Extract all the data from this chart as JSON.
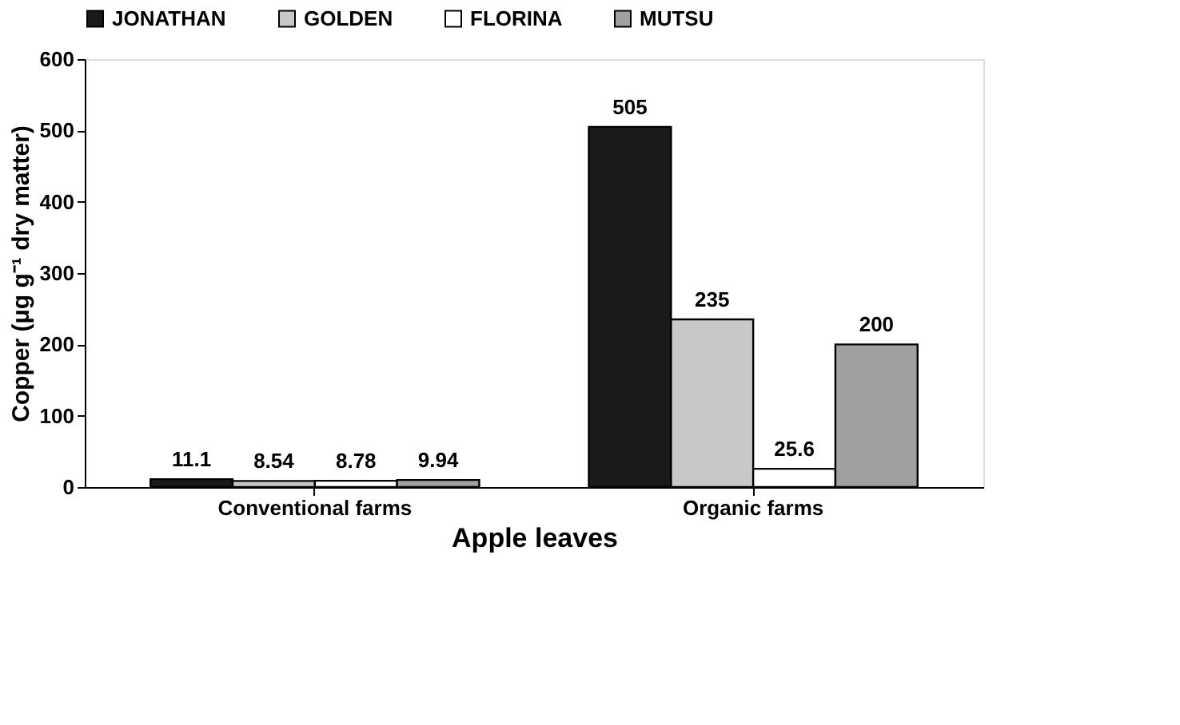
{
  "chart_data": {
    "type": "bar",
    "xlabel": "Apple leaves",
    "ylabel": "Copper (μg g⁻¹ dry matter)",
    "categories": [
      "Conventional farms",
      "Organic farms"
    ],
    "series": [
      {
        "name": "JONATHAN",
        "color": "#1a1a1a",
        "values": [
          11.1,
          505
        ]
      },
      {
        "name": "GOLDEN",
        "color": "#c8c8c8",
        "values": [
          8.54,
          235
        ]
      },
      {
        "name": "FLORINA",
        "color": "#ffffff",
        "values": [
          8.78,
          25.6
        ]
      },
      {
        "name": "MUTSU",
        "color": "#a0a0a0",
        "values": [
          9.94,
          200
        ]
      }
    ],
    "ylim": [
      0,
      600
    ],
    "yticks": [
      0,
      100,
      200,
      300,
      400,
      500,
      600
    ],
    "grid": false,
    "legend": "top",
    "data_labels": true
  }
}
